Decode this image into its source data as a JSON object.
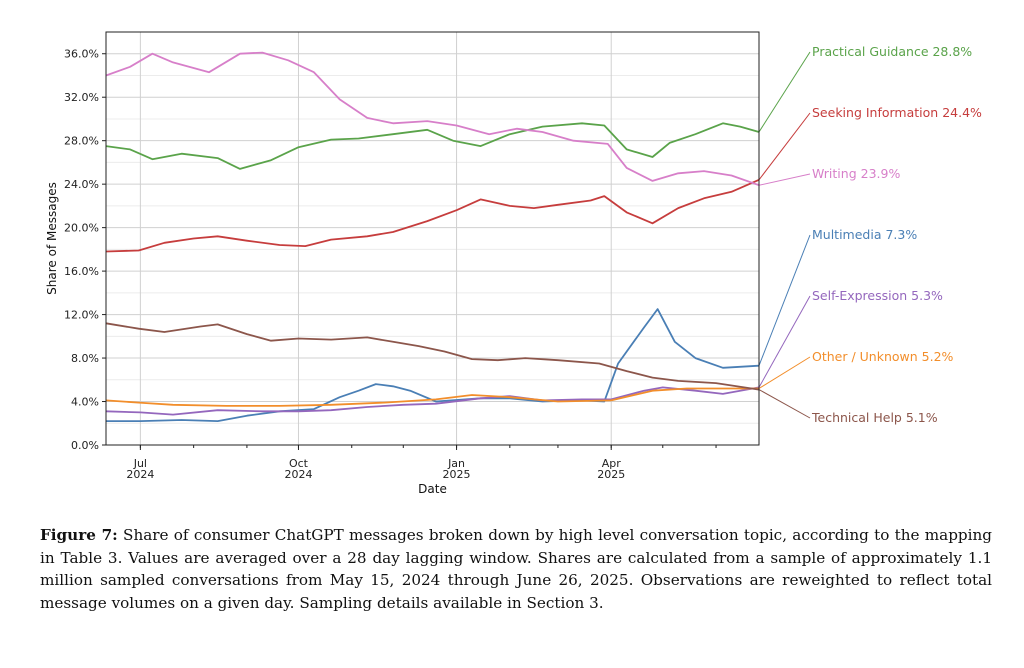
{
  "chart_data": {
    "type": "line",
    "xlabel": "Date",
    "ylabel": "Share of Messages",
    "ylim": [
      0,
      38
    ],
    "xlim": [
      "2024-06-11",
      "2025-06-26"
    ],
    "y_ticks": [
      "0.0%",
      "4.0%",
      "8.0%",
      "12.0%",
      "16.0%",
      "20.0%",
      "24.0%",
      "28.0%",
      "32.0%",
      "36.0%"
    ],
    "x_ticks": [
      {
        "date": "2024-07-01",
        "month": "Jul",
        "year": "2024"
      },
      {
        "date": "2024-10-01",
        "month": "Oct",
        "year": "2024"
      },
      {
        "date": "2025-01-01",
        "month": "Jan",
        "year": "2025"
      },
      {
        "date": "2025-04-01",
        "month": "Apr",
        "year": "2025"
      }
    ],
    "grid": true,
    "legend": "end-of-line labels at right",
    "series": [
      {
        "name": "Practical Guidance",
        "value_label": "28.8%",
        "color": "#5aa34a",
        "points": [
          [
            "2024-06-11",
            27.5
          ],
          [
            "2024-06-25",
            27.2
          ],
          [
            "2024-07-08",
            26.3
          ],
          [
            "2024-07-25",
            26.8
          ],
          [
            "2024-08-15",
            26.4
          ],
          [
            "2024-08-28",
            25.4
          ],
          [
            "2024-09-15",
            26.2
          ],
          [
            "2024-10-01",
            27.4
          ],
          [
            "2024-10-20",
            28.1
          ],
          [
            "2024-11-05",
            28.2
          ],
          [
            "2024-11-25",
            28.6
          ],
          [
            "2024-12-15",
            29.0
          ],
          [
            "2024-12-30",
            28.0
          ],
          [
            "2025-01-15",
            27.5
          ],
          [
            "2025-02-01",
            28.6
          ],
          [
            "2025-02-20",
            29.3
          ],
          [
            "2025-03-15",
            29.6
          ],
          [
            "2025-03-28",
            29.4
          ],
          [
            "2025-04-10",
            27.2
          ],
          [
            "2025-04-25",
            26.5
          ],
          [
            "2025-05-05",
            27.8
          ],
          [
            "2025-05-20",
            28.6
          ],
          [
            "2025-06-05",
            29.6
          ],
          [
            "2025-06-15",
            29.3
          ],
          [
            "2025-06-26",
            28.8
          ]
        ]
      },
      {
        "name": "Seeking Information",
        "value_label": "24.4%",
        "color": "#c63d3d",
        "points": [
          [
            "2024-06-11",
            17.8
          ],
          [
            "2024-06-30",
            17.9
          ],
          [
            "2024-07-15",
            18.6
          ],
          [
            "2024-08-01",
            19.0
          ],
          [
            "2024-08-15",
            19.2
          ],
          [
            "2024-09-01",
            18.8
          ],
          [
            "2024-09-20",
            18.4
          ],
          [
            "2024-10-05",
            18.3
          ],
          [
            "2024-10-20",
            18.9
          ],
          [
            "2024-11-10",
            19.2
          ],
          [
            "2024-11-25",
            19.6
          ],
          [
            "2024-12-15",
            20.6
          ],
          [
            "2025-01-01",
            21.6
          ],
          [
            "2025-01-15",
            22.6
          ],
          [
            "2025-02-01",
            22.0
          ],
          [
            "2025-02-15",
            21.8
          ],
          [
            "2025-03-01",
            22.1
          ],
          [
            "2025-03-20",
            22.5
          ],
          [
            "2025-03-28",
            22.9
          ],
          [
            "2025-04-10",
            21.4
          ],
          [
            "2025-04-25",
            20.4
          ],
          [
            "2025-05-10",
            21.8
          ],
          [
            "2025-05-25",
            22.7
          ],
          [
            "2025-06-10",
            23.3
          ],
          [
            "2025-06-26",
            24.4
          ]
        ]
      },
      {
        "name": "Writing",
        "value_label": "23.9%",
        "color": "#d77fc9",
        "points": [
          [
            "2024-06-11",
            34.0
          ],
          [
            "2024-06-25",
            34.8
          ],
          [
            "2024-07-08",
            36.0
          ],
          [
            "2024-07-20",
            35.2
          ],
          [
            "2024-08-10",
            34.3
          ],
          [
            "2024-08-28",
            36.0
          ],
          [
            "2024-09-10",
            36.1
          ],
          [
            "2024-09-25",
            35.4
          ],
          [
            "2024-10-10",
            34.3
          ],
          [
            "2024-10-25",
            31.8
          ],
          [
            "2024-11-10",
            30.1
          ],
          [
            "2024-11-25",
            29.6
          ],
          [
            "2024-12-15",
            29.8
          ],
          [
            "2025-01-01",
            29.4
          ],
          [
            "2025-01-20",
            28.6
          ],
          [
            "2025-02-05",
            29.1
          ],
          [
            "2025-02-20",
            28.8
          ],
          [
            "2025-03-10",
            28.0
          ],
          [
            "2025-03-30",
            27.7
          ],
          [
            "2025-04-10",
            25.5
          ],
          [
            "2025-04-25",
            24.3
          ],
          [
            "2025-05-10",
            25.0
          ],
          [
            "2025-05-25",
            25.2
          ],
          [
            "2025-06-10",
            24.8
          ],
          [
            "2025-06-26",
            23.9
          ]
        ]
      },
      {
        "name": "Multimedia",
        "value_label": "7.3%",
        "color": "#4a7fb5",
        "points": [
          [
            "2024-06-11",
            2.2
          ],
          [
            "2024-07-01",
            2.2
          ],
          [
            "2024-07-25",
            2.3
          ],
          [
            "2024-08-15",
            2.2
          ],
          [
            "2024-09-01",
            2.7
          ],
          [
            "2024-09-20",
            3.1
          ],
          [
            "2024-10-10",
            3.3
          ],
          [
            "2024-10-25",
            4.4
          ],
          [
            "2024-11-05",
            5.0
          ],
          [
            "2024-11-15",
            5.6
          ],
          [
            "2024-11-25",
            5.4
          ],
          [
            "2024-12-05",
            5.0
          ],
          [
            "2024-12-20",
            4.0
          ],
          [
            "2025-01-15",
            4.3
          ],
          [
            "2025-02-01",
            4.3
          ],
          [
            "2025-02-20",
            4.0
          ],
          [
            "2025-03-15",
            4.1
          ],
          [
            "2025-03-28",
            4.0
          ],
          [
            "2025-04-05",
            7.5
          ],
          [
            "2025-04-20",
            10.8
          ],
          [
            "2025-04-28",
            12.5
          ],
          [
            "2025-05-08",
            9.5
          ],
          [
            "2025-05-20",
            8.0
          ],
          [
            "2025-06-05",
            7.1
          ],
          [
            "2025-06-26",
            7.3
          ]
        ]
      },
      {
        "name": "Self-Expression",
        "value_label": "5.3%",
        "color": "#9467bd",
        "points": [
          [
            "2024-06-11",
            3.1
          ],
          [
            "2024-07-01",
            3.0
          ],
          [
            "2024-07-20",
            2.8
          ],
          [
            "2024-08-15",
            3.2
          ],
          [
            "2024-09-10",
            3.1
          ],
          [
            "2024-10-01",
            3.1
          ],
          [
            "2024-10-20",
            3.2
          ],
          [
            "2024-11-10",
            3.5
          ],
          [
            "2024-12-01",
            3.7
          ],
          [
            "2024-12-20",
            3.8
          ],
          [
            "2025-01-15",
            4.3
          ],
          [
            "2025-02-01",
            4.5
          ],
          [
            "2025-02-20",
            4.1
          ],
          [
            "2025-03-15",
            4.2
          ],
          [
            "2025-04-01",
            4.2
          ],
          [
            "2025-04-20",
            5.0
          ],
          [
            "2025-05-01",
            5.3
          ],
          [
            "2025-05-20",
            5.0
          ],
          [
            "2025-06-05",
            4.7
          ],
          [
            "2025-06-26",
            5.3
          ]
        ]
      },
      {
        "name": "Other / Unknown",
        "value_label": "5.2%",
        "color": "#f28e2b",
        "points": [
          [
            "2024-06-11",
            4.1
          ],
          [
            "2024-06-30",
            3.9
          ],
          [
            "2024-07-20",
            3.7
          ],
          [
            "2024-08-20",
            3.6
          ],
          [
            "2024-09-20",
            3.6
          ],
          [
            "2024-10-20",
            3.7
          ],
          [
            "2024-11-20",
            3.9
          ],
          [
            "2024-12-20",
            4.2
          ],
          [
            "2025-01-10",
            4.6
          ],
          [
            "2025-02-01",
            4.4
          ],
          [
            "2025-03-01",
            4.0
          ],
          [
            "2025-04-01",
            4.1
          ],
          [
            "2025-04-25",
            5.0
          ],
          [
            "2025-05-15",
            5.2
          ],
          [
            "2025-06-26",
            5.2
          ]
        ]
      },
      {
        "name": "Technical Help",
        "value_label": "5.1%",
        "color": "#8c564b",
        "points": [
          [
            "2024-06-11",
            11.2
          ],
          [
            "2024-06-30",
            10.7
          ],
          [
            "2024-07-15",
            10.4
          ],
          [
            "2024-08-05",
            10.9
          ],
          [
            "2024-08-15",
            11.1
          ],
          [
            "2024-09-01",
            10.2
          ],
          [
            "2024-09-15",
            9.6
          ],
          [
            "2024-10-01",
            9.8
          ],
          [
            "2024-10-20",
            9.7
          ],
          [
            "2024-11-10",
            9.9
          ],
          [
            "2024-11-25",
            9.5
          ],
          [
            "2024-12-10",
            9.1
          ],
          [
            "2024-12-25",
            8.6
          ],
          [
            "2025-01-10",
            7.9
          ],
          [
            "2025-01-25",
            7.8
          ],
          [
            "2025-02-10",
            8.0
          ],
          [
            "2025-03-01",
            7.8
          ],
          [
            "2025-03-25",
            7.5
          ],
          [
            "2025-04-10",
            6.8
          ],
          [
            "2025-04-25",
            6.2
          ],
          [
            "2025-05-10",
            5.9
          ],
          [
            "2025-06-01",
            5.7
          ],
          [
            "2025-06-26",
            5.1
          ]
        ]
      }
    ]
  },
  "caption": {
    "label": "Figure 7:",
    "text": " Share of consumer ChatGPT messages broken down by high level conversation topic, according to the mapping in Table 3. Values are averaged over a 28 day lagging window. Shares are calculated from a sample of approximately 1.1 million sampled conversations from May 15, 2024 through June 26, 2025. Observations are reweighted to reflect total message volumes on a given day. Sampling details available in Section 3."
  }
}
